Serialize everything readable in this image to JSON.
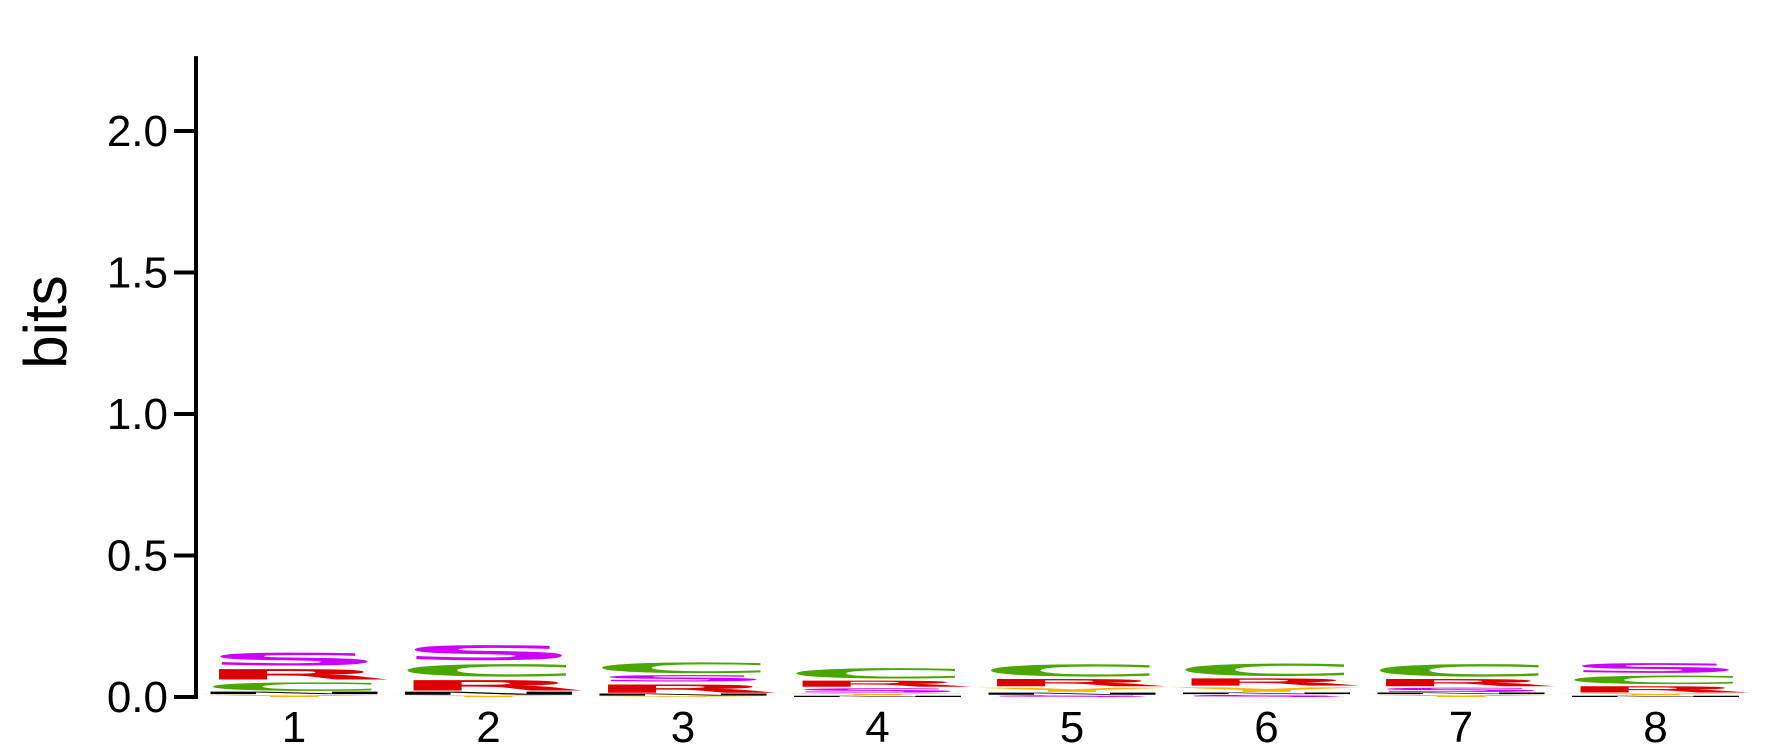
{
  "chart_data": {
    "type": "sequence-logo",
    "ylabel": "bits",
    "ylim": [
      0,
      2.3
    ],
    "yticks": [
      "0.0",
      "0.5",
      "1.0",
      "1.5",
      "2.0"
    ],
    "ytick_values": [
      0.0,
      0.5,
      1.0,
      1.5,
      2.0
    ],
    "positions": [
      "1",
      "2",
      "3",
      "4",
      "5",
      "6",
      "7",
      "8"
    ],
    "letter_colors": {
      "S": "#cc00ff",
      "C": "#4aa600",
      "R": "#dd0000",
      "N": "#000000",
      "Y": "#ffb300",
      "G": "#888888"
    },
    "stacks": [
      [
        {
          "letter": "Y",
          "height": 0.01
        },
        {
          "letter": "N",
          "height": 0.012
        },
        {
          "letter": "C",
          "height": 0.04
        },
        {
          "letter": "R",
          "height": 0.05
        },
        {
          "letter": "S",
          "height": 0.06
        }
      ],
      [
        {
          "letter": "Y",
          "height": 0.008
        },
        {
          "letter": "N",
          "height": 0.015
        },
        {
          "letter": "R",
          "height": 0.05
        },
        {
          "letter": "C",
          "height": 0.058
        },
        {
          "letter": "S",
          "height": 0.07
        }
      ],
      [
        {
          "letter": "Y",
          "height": 0.005
        },
        {
          "letter": "N",
          "height": 0.01
        },
        {
          "letter": "R",
          "height": 0.04
        },
        {
          "letter": "S",
          "height": 0.03
        },
        {
          "letter": "C",
          "height": 0.05
        }
      ],
      [
        {
          "letter": "N",
          "height": 0.006
        },
        {
          "letter": "Y",
          "height": 0.01
        },
        {
          "letter": "S",
          "height": 0.02
        },
        {
          "letter": "R",
          "height": 0.03
        },
        {
          "letter": "C",
          "height": 0.048
        }
      ],
      [
        {
          "letter": "S",
          "height": 0.008
        },
        {
          "letter": "N",
          "height": 0.01
        },
        {
          "letter": "Y",
          "height": 0.02
        },
        {
          "letter": "R",
          "height": 0.035
        },
        {
          "letter": "C",
          "height": 0.057
        }
      ],
      [
        {
          "letter": "S",
          "height": 0.01
        },
        {
          "letter": "N",
          "height": 0.008
        },
        {
          "letter": "Y",
          "height": 0.022
        },
        {
          "letter": "R",
          "height": 0.035
        },
        {
          "letter": "C",
          "height": 0.058
        }
      ],
      [
        {
          "letter": "Y",
          "height": 0.01
        },
        {
          "letter": "N",
          "height": 0.008
        },
        {
          "letter": "S",
          "height": 0.02
        },
        {
          "letter": "R",
          "height": 0.035
        },
        {
          "letter": "C",
          "height": 0.058
        }
      ],
      [
        {
          "letter": "N",
          "height": 0.006
        },
        {
          "letter": "Y",
          "height": 0.01
        },
        {
          "letter": "R",
          "height": 0.03
        },
        {
          "letter": "C",
          "height": 0.04
        },
        {
          "letter": "S",
          "height": 0.045
        }
      ]
    ]
  }
}
